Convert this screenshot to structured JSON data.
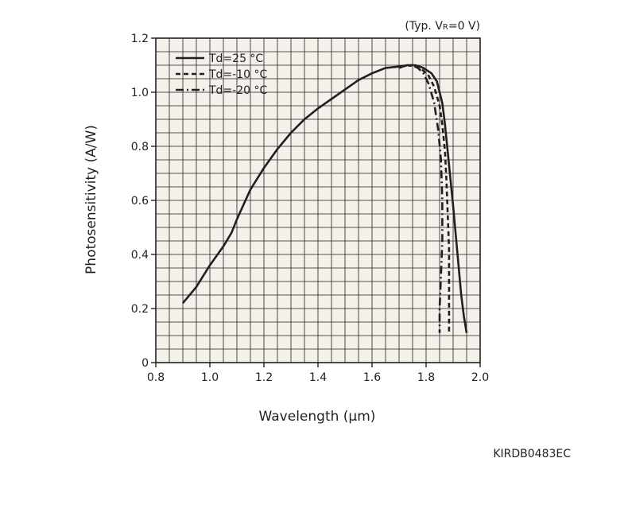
{
  "chart_data": {
    "type": "line",
    "title": "",
    "condition_note": {
      "prefix": "(Typ. V",
      "subscript": "R",
      "suffix": "=0 V)"
    },
    "xlabel": "Wavelength (µm)",
    "ylabel": "Photosensitivity (A/W)",
    "xlim": [
      0.8,
      2.0
    ],
    "ylim": [
      0,
      1.2
    ],
    "x_ticks": [
      "0.8",
      "1.0",
      "1.2",
      "1.4",
      "1.6",
      "1.8",
      "2.0"
    ],
    "y_ticks": [
      "0",
      "0.2",
      "0.4",
      "0.6",
      "0.8",
      "1.0",
      "1.2"
    ],
    "grid": true,
    "legend_position": "top-left",
    "plot_background": "#f3f1ea",
    "line_color": "#231f20",
    "series": [
      {
        "name": "Td=25 °C",
        "dash": "solid",
        "x": [
          0.9,
          0.95,
          1.0,
          1.05,
          1.08,
          1.1,
          1.15,
          1.2,
          1.25,
          1.3,
          1.35,
          1.4,
          1.45,
          1.5,
          1.55,
          1.6,
          1.65,
          1.7,
          1.73,
          1.76,
          1.79,
          1.82,
          1.84,
          1.86,
          1.87,
          1.88,
          1.89,
          1.9,
          1.91,
          1.92,
          1.93,
          1.94,
          1.95
        ],
        "y": [
          0.22,
          0.28,
          0.36,
          0.43,
          0.48,
          0.53,
          0.64,
          0.72,
          0.79,
          0.85,
          0.9,
          0.94,
          0.975,
          1.01,
          1.045,
          1.07,
          1.09,
          1.095,
          1.1,
          1.1,
          1.09,
          1.07,
          1.04,
          0.96,
          0.88,
          0.78,
          0.68,
          0.58,
          0.47,
          0.36,
          0.25,
          0.17,
          0.11
        ]
      },
      {
        "name": "Td=-10 °C",
        "dash": "dashed",
        "x": [
          1.7,
          1.73,
          1.76,
          1.79,
          1.81,
          1.83,
          1.85,
          1.86,
          1.87,
          1.875,
          1.88,
          1.885,
          1.885,
          1.885,
          1.885
        ],
        "y": [
          1.095,
          1.1,
          1.095,
          1.08,
          1.06,
          1.02,
          0.95,
          0.88,
          0.78,
          0.68,
          0.55,
          0.42,
          0.3,
          0.2,
          0.11
        ]
      },
      {
        "name": "Td=-20 °C",
        "dash": "dashdot",
        "x": [
          1.7,
          1.73,
          1.75,
          1.77,
          1.79,
          1.81,
          1.83,
          1.845,
          1.855,
          1.86,
          1.86,
          1.855,
          1.85,
          1.85
        ],
        "y": [
          1.09,
          1.1,
          1.1,
          1.09,
          1.07,
          1.03,
          0.96,
          0.86,
          0.75,
          0.6,
          0.45,
          0.32,
          0.2,
          0.11
        ]
      }
    ]
  },
  "figure_code": "KIRDB0483EC"
}
